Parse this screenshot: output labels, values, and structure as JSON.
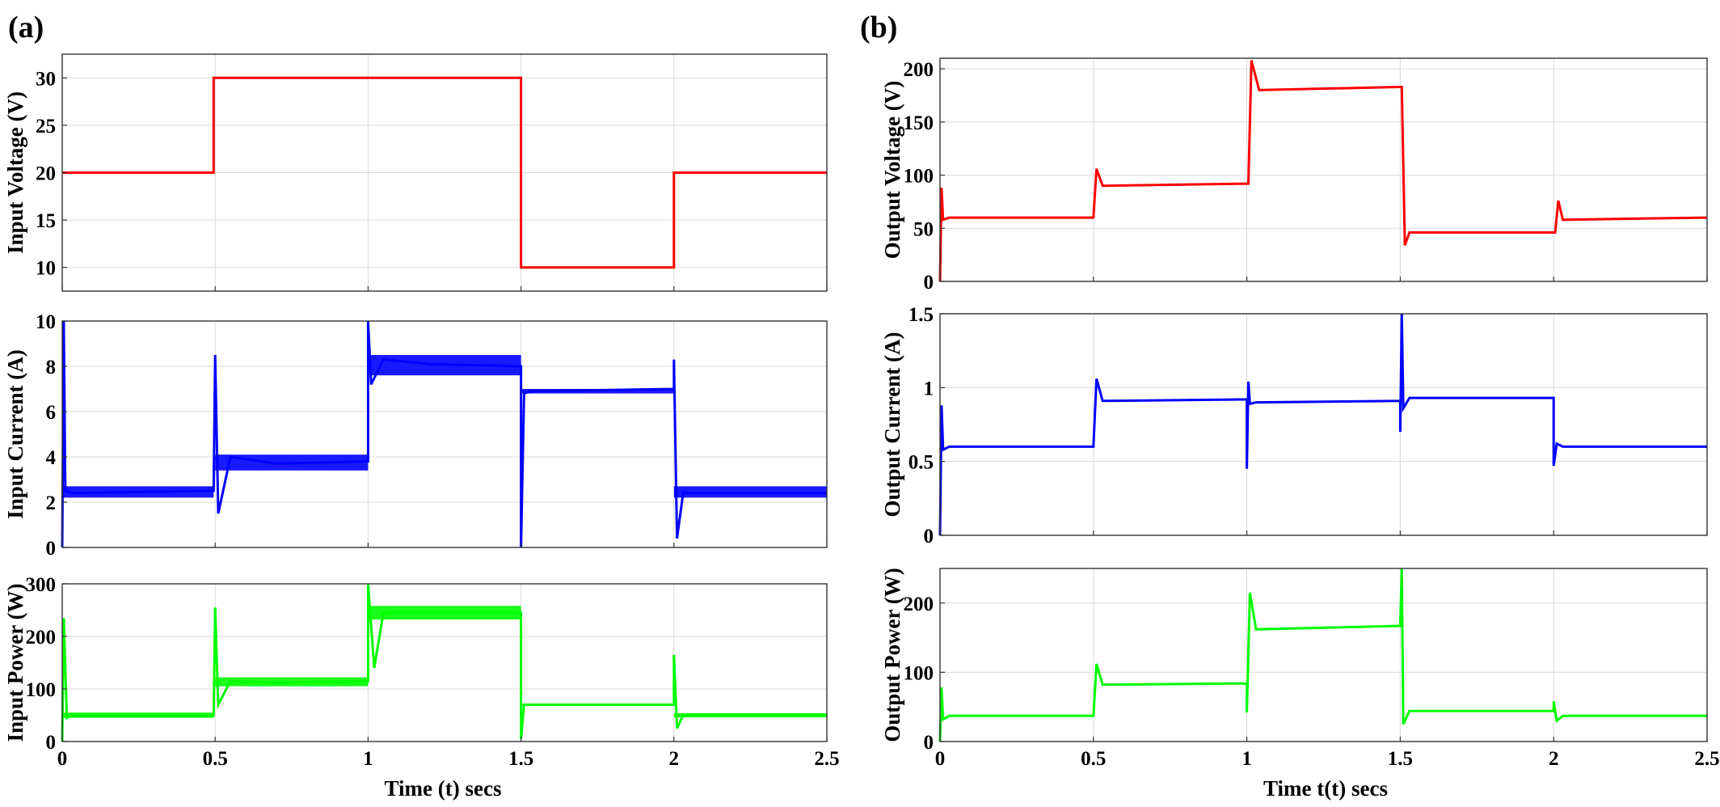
{
  "panels": {
    "a": {
      "label": "(a)",
      "xlabel": "Time (t) secs"
    },
    "b": {
      "label": "(b)",
      "xlabel": "Time t(t) secs"
    }
  },
  "x_ticks": [
    "0",
    "0.5",
    "1",
    "1.5",
    "2",
    "2.5"
  ],
  "chart_data": [
    {
      "type": "line",
      "panel": "a",
      "ylabel": "Input Voltage (V)",
      "color": "#ff0000",
      "xlim": [
        0,
        2.5
      ],
      "ylim": [
        7.5,
        32.5
      ],
      "yticks": [
        10,
        15,
        20,
        25,
        30
      ],
      "grid": true,
      "x": [
        0,
        0.495,
        0.495,
        1.5,
        1.5,
        2.0,
        2.0,
        2.5
      ],
      "y": [
        20,
        20,
        30,
        30,
        10,
        10,
        20,
        20
      ]
    },
    {
      "type": "line",
      "panel": "a",
      "ylabel": "Input Current (A)",
      "color": "#0000ff",
      "xlim": [
        0,
        2.5
      ],
      "ylim": [
        0,
        10
      ],
      "yticks": [
        0,
        2,
        4,
        6,
        8,
        10
      ],
      "grid": true,
      "x": [
        0,
        0.005,
        0.01,
        0.03,
        0.495,
        0.5,
        0.51,
        0.55,
        0.7,
        1.0,
        1.0,
        1.01,
        1.05,
        1.2,
        1.5,
        1.5,
        1.51,
        1.53,
        2.0,
        2.0,
        2.01,
        2.03,
        2.5
      ],
      "y": [
        0,
        10,
        2.5,
        2.4,
        2.5,
        8.5,
        1.5,
        4.0,
        3.7,
        3.8,
        10,
        7.2,
        8.3,
        8.1,
        8.0,
        0,
        6.8,
        6.9,
        7.0,
        8.3,
        0.4,
        2.4,
        2.4
      ],
      "band": [
        [
          0.0,
          0.495,
          2.2,
          2.7
        ],
        [
          0.5,
          1.0,
          3.4,
          4.1
        ],
        [
          1.0,
          1.5,
          7.6,
          8.5
        ],
        [
          1.5,
          2.0,
          6.8,
          7.0
        ],
        [
          2.0,
          2.5,
          2.2,
          2.7
        ]
      ]
    },
    {
      "type": "line",
      "panel": "a",
      "ylabel": "Input Power (W)",
      "color": "#00ff00",
      "xlim": [
        0,
        2.5
      ],
      "ylim": [
        0,
        300
      ],
      "yticks": [
        0,
        100,
        200,
        300
      ],
      "grid": true,
      "x": [
        0,
        0.005,
        0.015,
        0.03,
        0.495,
        0.5,
        0.51,
        0.55,
        0.7,
        1.0,
        1.0,
        1.02,
        1.05,
        1.2,
        1.5,
        1.5,
        1.51,
        1.53,
        2.0,
        2.0,
        2.01,
        2.03,
        2.5
      ],
      "y": [
        0,
        235,
        45,
        50,
        50,
        255,
        70,
        115,
        112,
        115,
        300,
        140,
        245,
        245,
        245,
        5,
        70,
        70,
        70,
        165,
        25,
        50,
        50
      ],
      "band": [
        [
          0.0,
          0.495,
          45,
          55
        ],
        [
          0.5,
          1.0,
          105,
          122
        ],
        [
          1.0,
          1.5,
          232,
          258
        ],
        [
          1.5,
          2.0,
          68,
          72
        ],
        [
          2.0,
          2.5,
          46,
          54
        ]
      ]
    },
    {
      "type": "line",
      "panel": "b",
      "ylabel": "Output Voltage (V)",
      "color": "#ff0000",
      "xlim": [
        0,
        2.5
      ],
      "ylim": [
        0,
        210
      ],
      "yticks": [
        0,
        50,
        100,
        150,
        200
      ],
      "grid": true,
      "x": [
        0,
        0.005,
        0.01,
        0.03,
        0.5,
        0.5,
        0.51,
        0.53,
        1.0,
        1.005,
        1.015,
        1.04,
        1.5,
        1.505,
        1.515,
        1.53,
        2.0,
        2.005,
        2.015,
        2.03,
        2.5
      ],
      "y": [
        0,
        88,
        58,
        60,
        60,
        60,
        106,
        90,
        92,
        92,
        208,
        180,
        183,
        183,
        34,
        46,
        46,
        46,
        76,
        58,
        60
      ]
    },
    {
      "type": "line",
      "panel": "b",
      "ylabel": "Output Current (A)",
      "color": "#0000ff",
      "xlim": [
        0,
        2.5
      ],
      "ylim": [
        0,
        1.5
      ],
      "yticks": [
        0,
        0.5,
        1,
        1.5
      ],
      "grid": true,
      "x": [
        0,
        0.005,
        0.01,
        0.03,
        0.5,
        0.5,
        0.51,
        0.53,
        1.0,
        1.0,
        1.005,
        1.01,
        1.03,
        1.5,
        1.5,
        1.505,
        1.51,
        1.53,
        2.0,
        2.0,
        2.01,
        2.03,
        2.5
      ],
      "y": [
        0,
        0.88,
        0.58,
        0.6,
        0.6,
        0.6,
        1.06,
        0.91,
        0.92,
        0.45,
        1.04,
        0.89,
        0.9,
        0.91,
        0.7,
        1.5,
        0.86,
        0.93,
        0.93,
        0.47,
        0.62,
        0.6,
        0.6
      ]
    },
    {
      "type": "line",
      "panel": "b",
      "ylabel": "Output Power (W)",
      "color": "#00ff00",
      "xlim": [
        0,
        2.5
      ],
      "ylim": [
        0,
        250
      ],
      "yticks": [
        0,
        100,
        200
      ],
      "grid": true,
      "x": [
        0,
        0.005,
        0.01,
        0.03,
        0.5,
        0.5,
        0.51,
        0.53,
        1.0,
        1.0,
        1.01,
        1.03,
        1.5,
        1.5,
        1.505,
        1.51,
        1.53,
        2.0,
        2.0,
        2.01,
        2.03,
        2.5
      ],
      "y": [
        0,
        78,
        32,
        37,
        37,
        37,
        112,
        82,
        84,
        42,
        215,
        162,
        167,
        167,
        250,
        25,
        44,
        44,
        58,
        30,
        37,
        37
      ]
    }
  ]
}
